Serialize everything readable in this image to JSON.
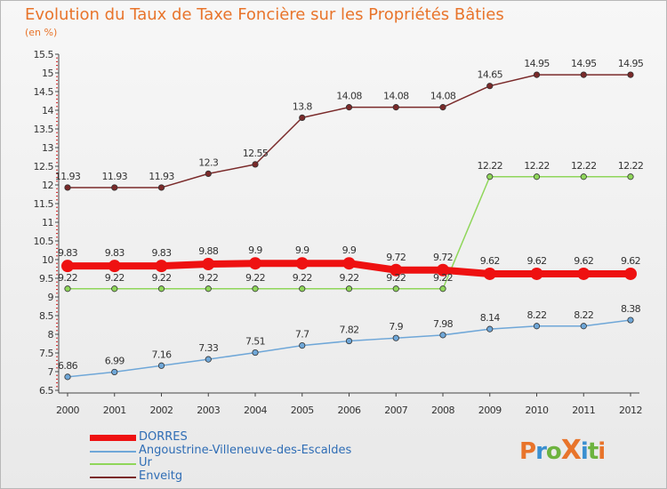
{
  "header": {
    "title": "Evolution du Taux de Taxe Foncière sur les Propriétés Bâties",
    "subtitle": "(en %)"
  },
  "logo": {
    "text": "ProXiti",
    "letter_colors": [
      "#e8742b",
      "#3a8fd0",
      "#6db33f",
      "#e8742b",
      "#3a8fd0",
      "#6db33f",
      "#e8742b"
    ]
  },
  "chart_data": {
    "type": "line",
    "x": [
      "2000",
      "2001",
      "2002",
      "2003",
      "2004",
      "2005",
      "2006",
      "2007",
      "2008",
      "2009",
      "2010",
      "2011",
      "2012"
    ],
    "ylim": [
      6.5,
      15.5
    ],
    "yticks": [
      "6.5",
      "7",
      "7.5",
      "8",
      "8.5",
      "9",
      "9.5",
      "10",
      "10.5",
      "11",
      "11.5",
      "12",
      "12.5",
      "13",
      "13.5",
      "14",
      "14.5",
      "15",
      "15.5"
    ],
    "grid": false,
    "legend_position": "bottom-left",
    "series": [
      {
        "name": "Enveitg",
        "color": "#7a2a2a",
        "values": [
          11.93,
          11.93,
          11.93,
          12.3,
          12.55,
          13.8,
          14.08,
          14.08,
          14.08,
          14.65,
          14.95,
          14.95,
          14.95
        ],
        "labels": [
          "11.93",
          "11.93",
          "11.93",
          "12.3",
          "12.55",
          "13.8",
          "14.08",
          "14.08",
          "14.08",
          "14.65",
          "14.95",
          "14.95",
          "14.95"
        ]
      },
      {
        "name": "Ur",
        "color": "#8fd65a",
        "values": [
          9.22,
          9.22,
          9.22,
          9.22,
          9.22,
          9.22,
          9.22,
          9.22,
          9.22,
          12.22,
          12.22,
          12.22,
          12.22
        ],
        "labels": [
          "9.22",
          "9.22",
          "9.22",
          "9.22",
          "9.22",
          "9.22",
          "9.22",
          "9.22",
          "9.22",
          "12.22",
          "12.22",
          "12.22",
          "12.22"
        ]
      },
      {
        "name": "Angoustrine-Villeneuve-des-Escaldes",
        "color": "#6fa7d8",
        "values": [
          6.86,
          6.99,
          7.16,
          7.33,
          7.51,
          7.7,
          7.82,
          7.9,
          7.98,
          8.14,
          8.22,
          8.22,
          8.38
        ],
        "labels": [
          "6.86",
          "6.99",
          "7.16",
          "7.33",
          "7.51",
          "7.7",
          "7.82",
          "7.9",
          "7.98",
          "8.14",
          "8.22",
          "8.22",
          "8.38"
        ]
      },
      {
        "name": "DORRES",
        "color": "#ee1111",
        "values": [
          9.83,
          9.83,
          9.83,
          9.88,
          9.9,
          9.9,
          9.9,
          9.72,
          9.72,
          9.62,
          9.62,
          9.62,
          9.62
        ],
        "labels": [
          "9.83",
          "9.83",
          "9.83",
          "9.88",
          "9.9",
          "9.9",
          "9.9",
          "9.72",
          "9.72",
          "9.62",
          "9.62",
          "9.62",
          "9.62"
        ]
      }
    ],
    "legend_order": [
      "DORRES",
      "Angoustrine-Villeneuve-des-Escaldes",
      "Ur",
      "Enveitg"
    ]
  }
}
